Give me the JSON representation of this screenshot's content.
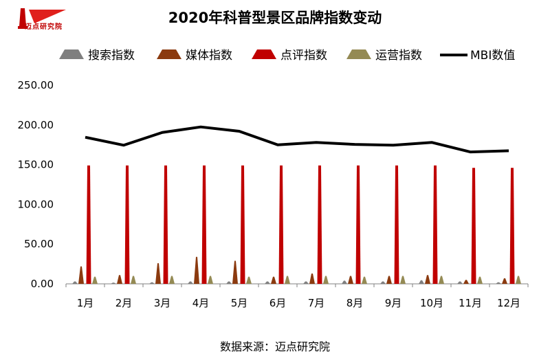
{
  "logo": {
    "text": "迈点研究院"
  },
  "chart_data": {
    "type": "bar",
    "title": "2020年科普型景区品牌指数变动",
    "categories": [
      "1月",
      "2月",
      "3月",
      "4月",
      "5月",
      "6月",
      "7月",
      "8月",
      "9月",
      "10月",
      "11月",
      "12月"
    ],
    "ylim": [
      0,
      250
    ],
    "yticks": [
      "0.00",
      "50.00",
      "100.00",
      "150.00",
      "200.00",
      "250.00"
    ],
    "grid": false,
    "legend_position": "top",
    "series": [
      {
        "name": "搜索指数",
        "kind": "bar",
        "color": "#7f7f7f",
        "values": [
          3.0,
          1.5,
          2.0,
          3.0,
          3.0,
          3.0,
          3.0,
          4.0,
          3.0,
          4.5,
          3.0,
          2.0
        ]
      },
      {
        "name": "媒体指数",
        "kind": "bar",
        "color": "#8b3a0f",
        "values": [
          22,
          11,
          26,
          34,
          29,
          9,
          13,
          10,
          10,
          11,
          5,
          7
        ]
      },
      {
        "name": "点评指数",
        "kind": "bar",
        "color": "#c00000",
        "values": [
          149,
          149,
          149,
          149,
          149,
          149,
          149,
          149,
          149,
          149,
          146,
          146
        ]
      },
      {
        "name": "运营指数",
        "kind": "bar",
        "color": "#948a54",
        "values": [
          9,
          10,
          10,
          10,
          9,
          10,
          10,
          9,
          10,
          10,
          9,
          10
        ]
      },
      {
        "name": "MBI数值",
        "kind": "line",
        "color": "#000000",
        "values": [
          184.5,
          174.5,
          190.5,
          197.5,
          192.0,
          175.0,
          178.0,
          175.5,
          174.5,
          178.0,
          166.0,
          167.5
        ]
      }
    ]
  },
  "source": "数据来源：迈点研究院"
}
